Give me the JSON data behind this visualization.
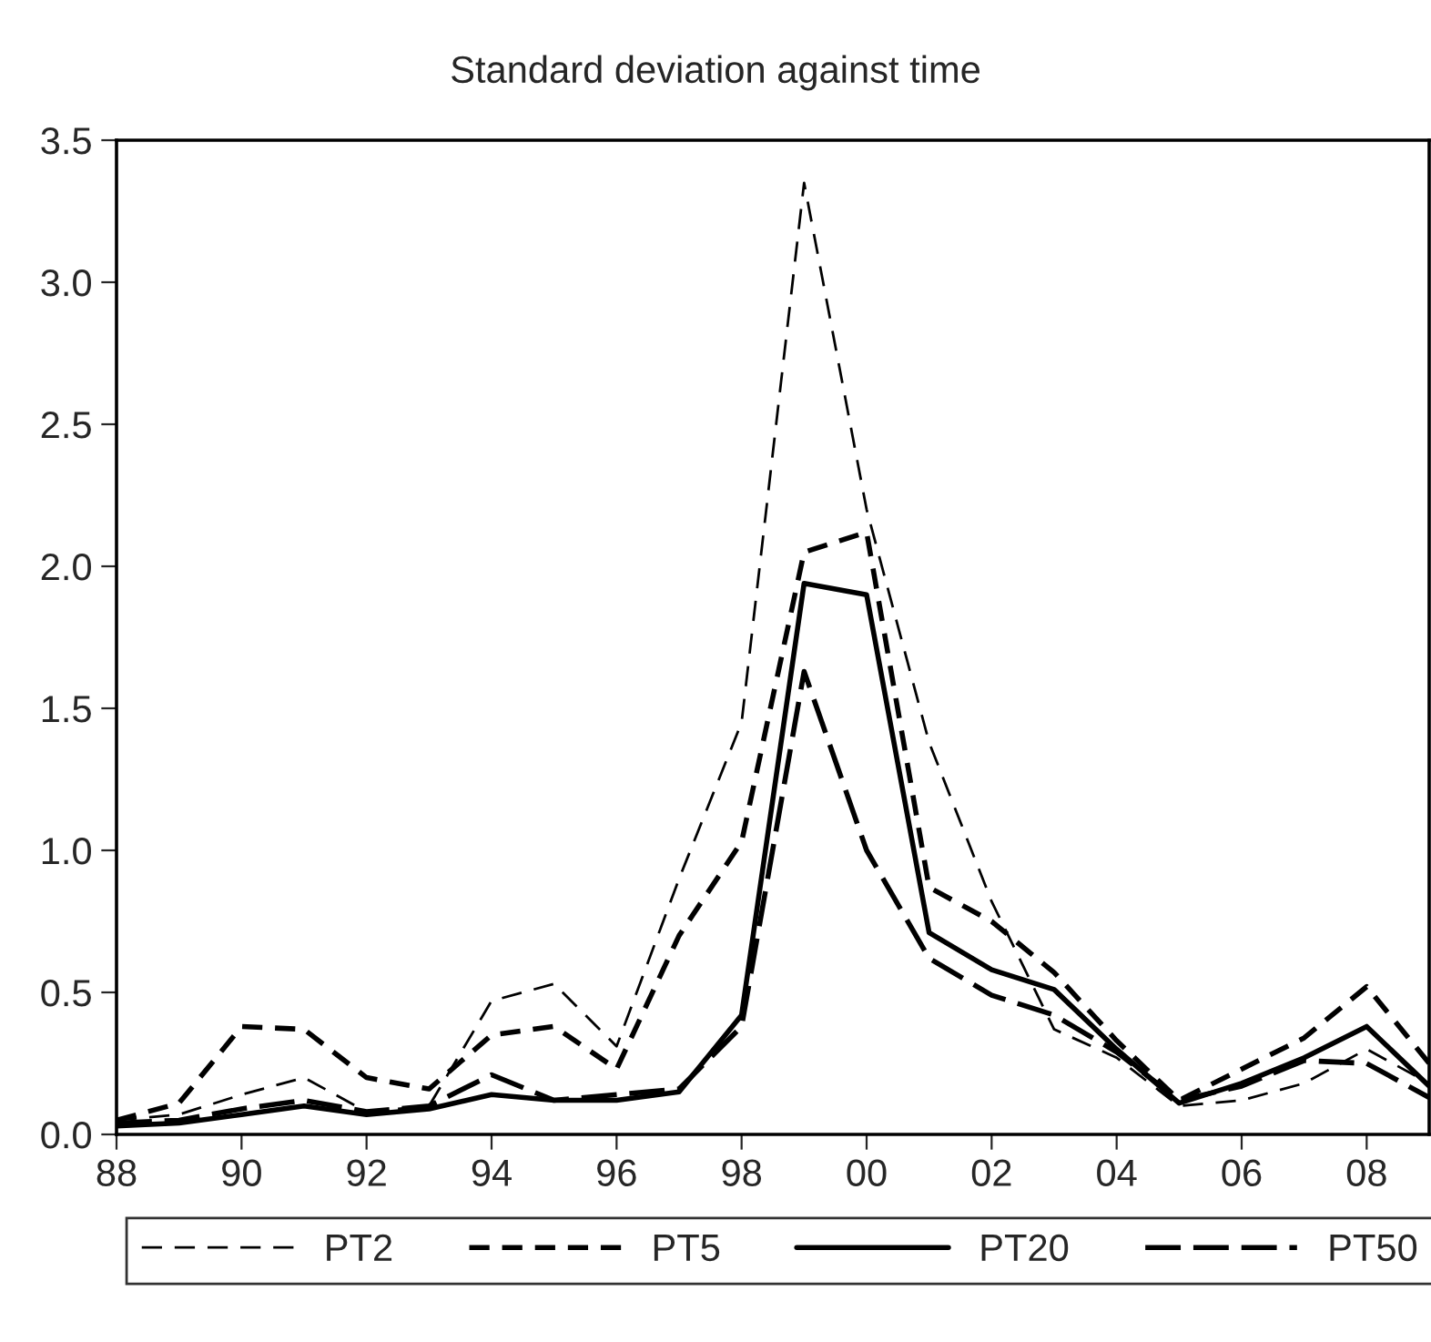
{
  "chart_data": {
    "type": "line",
    "title": "Standard deviation against time",
    "x": [
      1988,
      1989,
      1990,
      1991,
      1992,
      1993,
      1994,
      1995,
      1996,
      1997,
      1998,
      1999,
      2000,
      2001,
      2002,
      2003,
      2004,
      2005,
      2006,
      2007,
      2008,
      2009
    ],
    "series": [
      {
        "name": "PT2",
        "color": "#000000",
        "line_style": "dashed",
        "values": [
          0.05,
          0.07,
          0.14,
          0.2,
          0.08,
          0.1,
          0.47,
          0.53,
          0.31,
          0.9,
          1.45,
          3.35,
          2.2,
          1.38,
          0.82,
          0.37,
          0.27,
          0.1,
          0.12,
          0.18,
          0.3,
          0.18
        ]
      },
      {
        "name": "PT5",
        "color": "#000000",
        "line_style": "dashed",
        "values": [
          0.05,
          0.11,
          0.38,
          0.37,
          0.2,
          0.16,
          0.35,
          0.38,
          0.23,
          0.7,
          1.03,
          2.05,
          2.12,
          0.87,
          0.75,
          0.57,
          0.33,
          0.12,
          0.23,
          0.34,
          0.52,
          0.25
        ]
      },
      {
        "name": "PT20",
        "color": "#000000",
        "line_style": "solid",
        "values": [
          0.03,
          0.04,
          0.07,
          0.1,
          0.07,
          0.09,
          0.14,
          0.12,
          0.12,
          0.15,
          0.42,
          1.94,
          1.9,
          0.71,
          0.58,
          0.51,
          0.3,
          0.11,
          0.18,
          0.27,
          0.38,
          0.17
        ]
      },
      {
        "name": "PT50",
        "color": "#000000",
        "line_style": "dashed",
        "values": [
          0.04,
          0.05,
          0.09,
          0.12,
          0.08,
          0.1,
          0.21,
          0.12,
          0.14,
          0.16,
          0.38,
          1.63,
          1.0,
          0.62,
          0.49,
          0.42,
          0.29,
          0.12,
          0.17,
          0.26,
          0.25,
          0.13
        ]
      }
    ],
    "xlim": [
      1988,
      2009
    ],
    "xticks": [
      {
        "value": 1988,
        "label": "88"
      },
      {
        "value": 1990,
        "label": "90"
      },
      {
        "value": 1992,
        "label": "92"
      },
      {
        "value": 1994,
        "label": "94"
      },
      {
        "value": 1996,
        "label": "96"
      },
      {
        "value": 1998,
        "label": "98"
      },
      {
        "value": 2000,
        "label": "00"
      },
      {
        "value": 2002,
        "label": "02"
      },
      {
        "value": 2004,
        "label": "04"
      },
      {
        "value": 2006,
        "label": "06"
      },
      {
        "value": 2008,
        "label": "08"
      }
    ],
    "ylim": [
      0,
      3.5
    ],
    "yticks": [
      {
        "value": 0,
        "label": "0.0"
      },
      {
        "value": 0.5,
        "label": "0.5"
      },
      {
        "value": 1,
        "label": "1.0"
      },
      {
        "value": 1.5,
        "label": "1.5"
      },
      {
        "value": 2,
        "label": "2.0"
      },
      {
        "value": 2.5,
        "label": "2.5"
      },
      {
        "value": 3,
        "label": "3.0"
      },
      {
        "value": 3.5,
        "label": "3.5"
      }
    ],
    "grid": false,
    "legend": "bottom",
    "marker": "none"
  }
}
